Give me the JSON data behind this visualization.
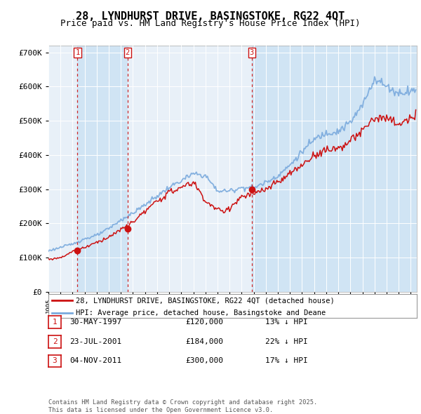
{
  "title": "28, LYNDHURST DRIVE, BASINGSTOKE, RG22 4QT",
  "subtitle": "Price paid vs. HM Land Registry's House Price Index (HPI)",
  "hpi_color": "#7aaadd",
  "price_color": "#cc1111",
  "plot_bg": "#e8f0f8",
  "plot_bg2": "#d0e4f4",
  "sale_color": "#cc1111",
  "vline_color": "#cc1111",
  "sales": [
    {
      "num": 1,
      "date": "30-MAY-1997",
      "price": 120000,
      "pct": "13%",
      "year": 1997.41
    },
    {
      "num": 2,
      "date": "23-JUL-2001",
      "price": 184000,
      "pct": "22%",
      "year": 2001.55
    },
    {
      "num": 3,
      "date": "04-NOV-2011",
      "price": 300000,
      "pct": "17%",
      "year": 2011.84
    }
  ],
  "ylim": [
    0,
    720000
  ],
  "xlim": [
    1995.0,
    2025.5
  ],
  "yticks": [
    0,
    100000,
    200000,
    300000,
    400000,
    500000,
    600000,
    700000
  ],
  "ytick_labels": [
    "£0",
    "£100K",
    "£200K",
    "£300K",
    "£400K",
    "£500K",
    "£600K",
    "£700K"
  ],
  "legend_label_red": "28, LYNDHURST DRIVE, BASINGSTOKE, RG22 4QT (detached house)",
  "legend_label_blue": "HPI: Average price, detached house, Basingstoke and Deane",
  "copyright": "Contains HM Land Registry data © Crown copyright and database right 2025.\nThis data is licensed under the Open Government Licence v3.0.",
  "title_fontsize": 11,
  "subtitle_fontsize": 9
}
